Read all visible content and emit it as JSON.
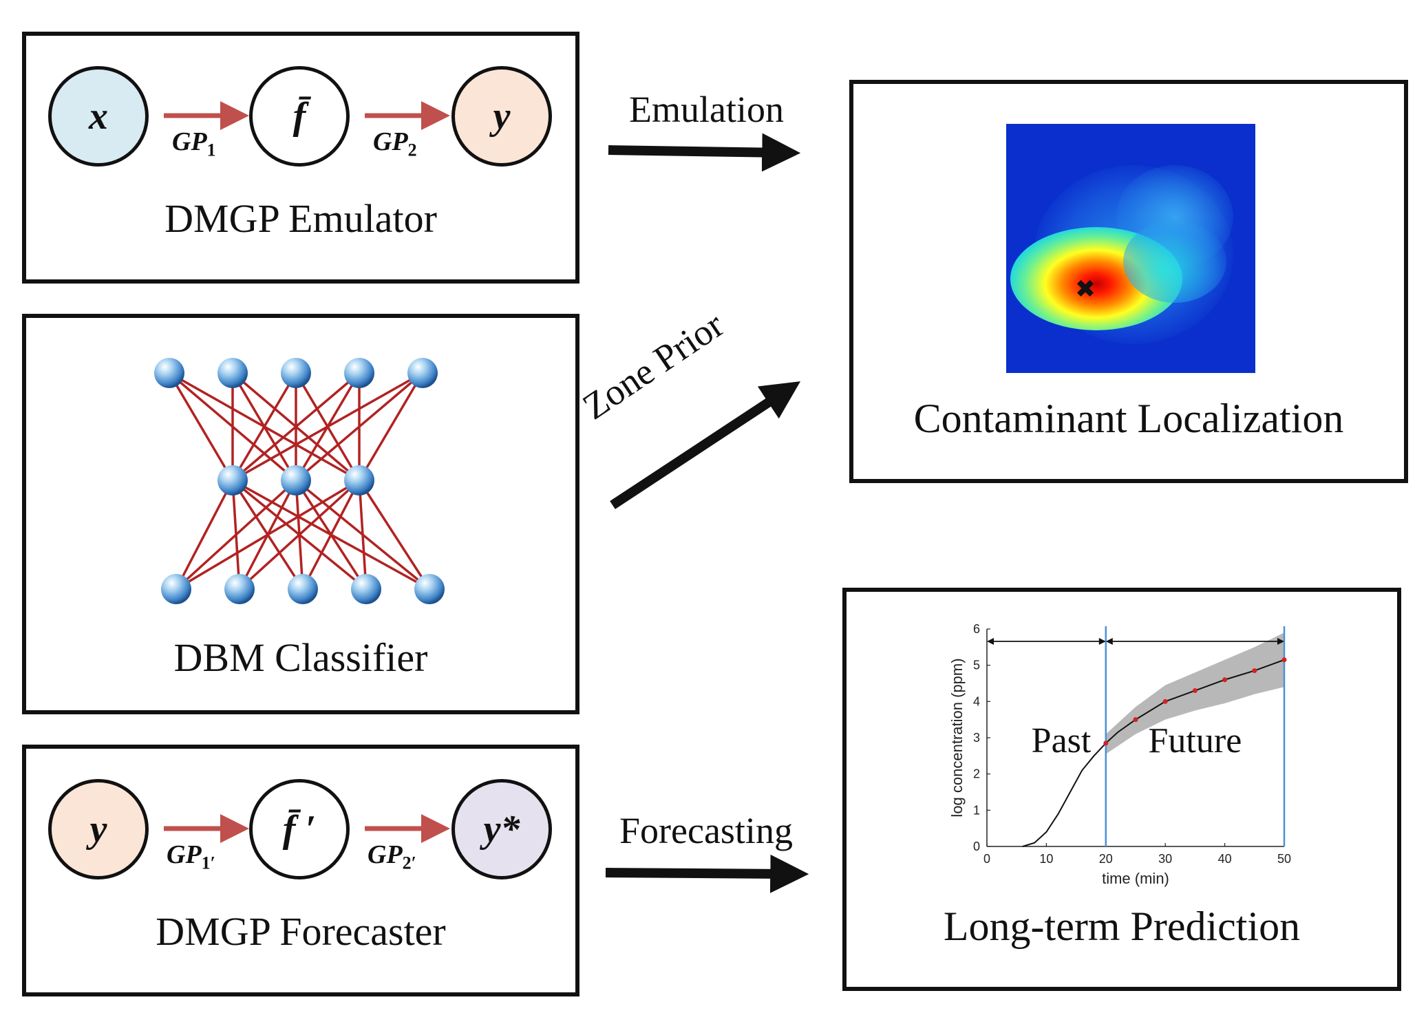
{
  "emulator": {
    "label": "DMGP Emulator",
    "nodes": {
      "input": "x",
      "latent": "f̄",
      "output": "y"
    },
    "edges": {
      "first": "GP",
      "first_sub": "1",
      "second": "GP",
      "second_sub": "2"
    }
  },
  "classifier": {
    "label": "DBM Classifier"
  },
  "forecaster": {
    "label": "DMGP Forecaster",
    "nodes": {
      "input": "y",
      "latent": "f̄ ′",
      "output": "y*"
    },
    "edges": {
      "first": "GP",
      "first_sub": "1′",
      "second": "GP",
      "second_sub": "2′"
    }
  },
  "arrows": {
    "emulation": "Emulation",
    "zone_prior": "Zone Prior",
    "forecasting": "Forecasting"
  },
  "localization": {
    "label": "Contaminant Localization",
    "marker": "✖"
  },
  "prediction": {
    "label": "Long-term Prediction",
    "past_label": "Past",
    "future_label": "Future"
  },
  "colors": {
    "node_x": "#d8eaf2",
    "node_y": "#fbe5d6",
    "node_ystar": "#e6e1ee",
    "edge_arrow": "#c0504d",
    "dbm_edge": "#b22222",
    "vline": "#4a90d9",
    "band": "#b8b8b8"
  },
  "chart_data": {
    "type": "line",
    "xlabel": "time (min)",
    "ylabel": "log concentration (ppm)",
    "xlim": [
      0,
      50
    ],
    "ylim": [
      0,
      6
    ],
    "xticks": [
      0,
      10,
      20,
      30,
      40,
      50
    ],
    "yticks": [
      0,
      1,
      2,
      3,
      4,
      5,
      6
    ],
    "vlines": [
      20,
      50
    ],
    "series": [
      {
        "x": [
          6,
          8,
          10,
          12,
          14,
          16,
          18,
          20,
          22,
          25,
          30,
          35,
          40,
          45,
          50
        ],
        "y": [
          0,
          0.1,
          0.4,
          0.9,
          1.5,
          2.1,
          2.5,
          2.85,
          3.15,
          3.5,
          4.0,
          4.3,
          4.6,
          4.85,
          5.15
        ]
      }
    ],
    "points": {
      "x": [
        20,
        25,
        30,
        35,
        40,
        45,
        50
      ],
      "y": [
        2.85,
        3.5,
        4.0,
        4.3,
        4.6,
        4.85,
        5.15
      ]
    },
    "band": {
      "x": [
        20,
        25,
        30,
        35,
        40,
        45,
        50
      ],
      "lower": [
        2.55,
        3.1,
        3.5,
        3.75,
        3.95,
        4.2,
        4.4
      ],
      "upper": [
        3.1,
        3.85,
        4.45,
        4.8,
        5.15,
        5.5,
        5.9
      ]
    },
    "grid": false
  }
}
